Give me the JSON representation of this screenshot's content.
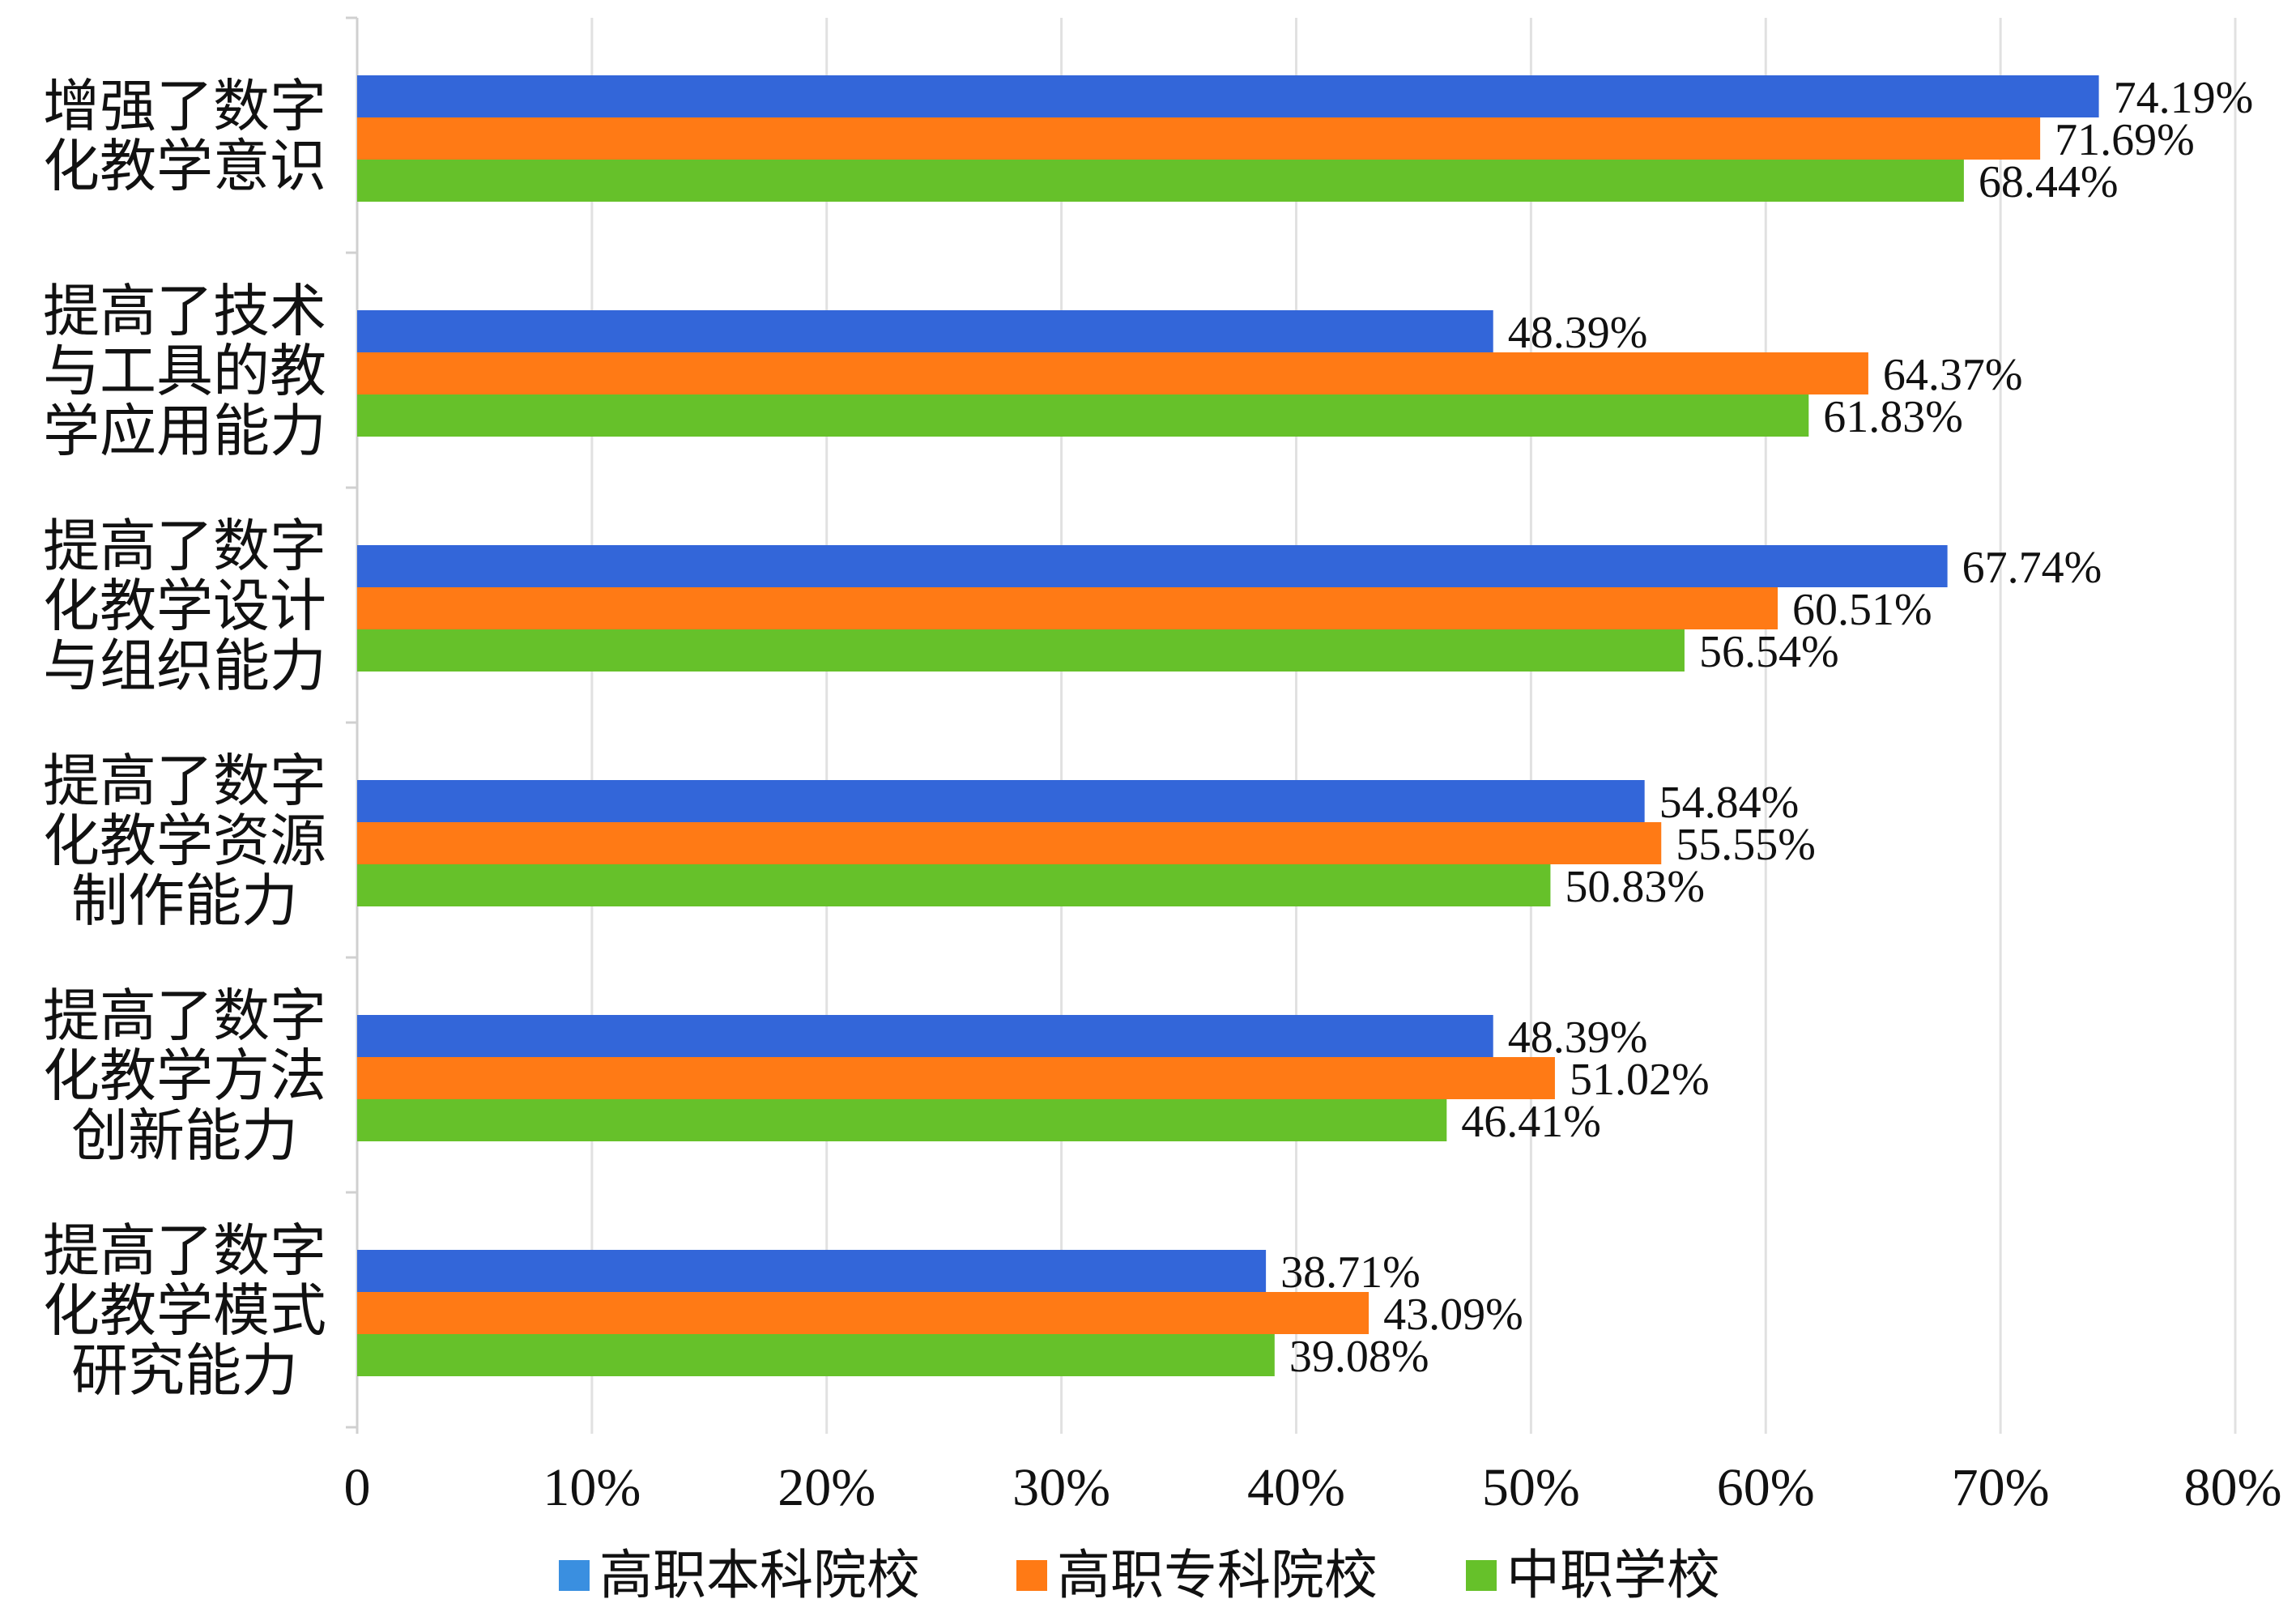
{
  "chart_data": {
    "type": "bar",
    "orientation": "horizontal",
    "categories": [
      [
        "增强了数字",
        "化教学意识"
      ],
      [
        "提高了技术",
        "与工具的教",
        "学应用能力"
      ],
      [
        "提高了数字",
        "化教学设计",
        "与组织能力"
      ],
      [
        "提高了数字",
        "化教学资源",
        "制作能力"
      ],
      [
        "提高了数字",
        "化教学方法",
        "创新能力"
      ],
      [
        "提高了数字",
        "化教学模式",
        "研究能力"
      ]
    ],
    "series": [
      {
        "name": "高职本科院校",
        "color": "#3366D9",
        "values": [
          74.19,
          48.39,
          67.74,
          54.84,
          48.39,
          38.71
        ]
      },
      {
        "name": "高职专科院校",
        "color": "#FF7A15",
        "values": [
          71.69,
          64.37,
          60.51,
          55.55,
          51.02,
          43.09
        ]
      },
      {
        "name": "中职学校",
        "color": "#66C12A",
        "values": [
          68.44,
          61.83,
          56.54,
          50.83,
          46.41,
          39.08
        ]
      }
    ],
    "data_labels": [
      [
        "74.19%",
        "71.69%",
        "68.44%"
      ],
      [
        "48.39%",
        "64.37%",
        "61.83%"
      ],
      [
        "67.74%",
        "60.51%",
        "56.54%"
      ],
      [
        "54.84%",
        "55.55%",
        "50.83%"
      ],
      [
        "48.39%",
        "51.02%",
        "46.41%"
      ],
      [
        "38.71%",
        "43.09%",
        "39.08%"
      ]
    ],
    "x_ticks": [
      "0",
      "10%",
      "20%",
      "30%",
      "40%",
      "50%",
      "60%",
      "70%",
      "80%"
    ],
    "xlim": [
      0,
      80
    ],
    "grid": true,
    "legend": {
      "position": "bottom",
      "colors": [
        "#3A8FE0",
        "#FF7A15",
        "#66C12A"
      ]
    }
  }
}
